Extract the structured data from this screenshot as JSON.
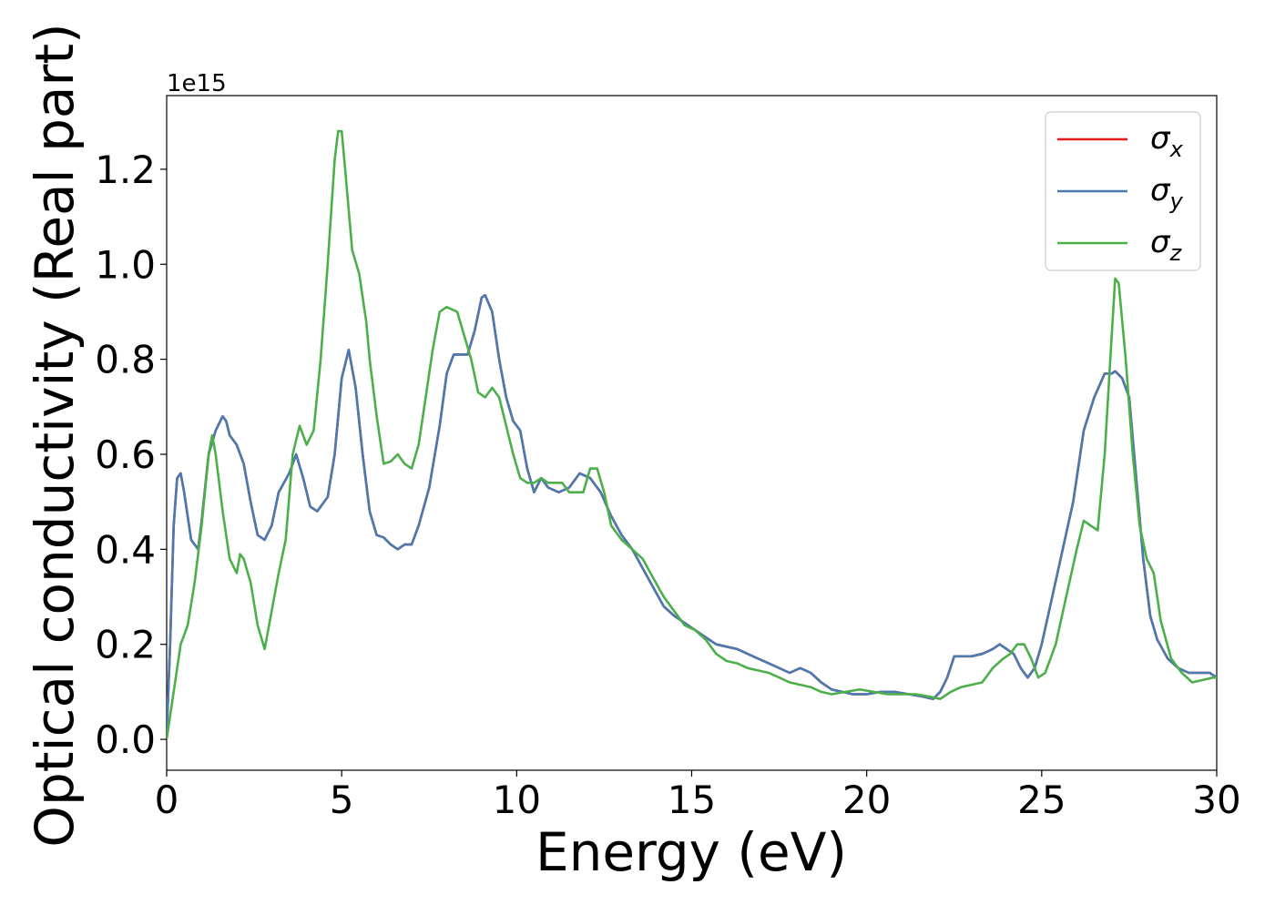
{
  "chart_data": {
    "type": "line",
    "title": "",
    "xlabel": "Energy (eV)",
    "ylabel": "Optical conductivity (Real part)",
    "y_offset_label": "1e15",
    "xlim": [
      0,
      30
    ],
    "ylim": [
      -0.065,
      1.355
    ],
    "xticks": [
      0,
      5,
      10,
      15,
      20,
      25,
      30
    ],
    "xtick_labels": [
      "0",
      "5",
      "10",
      "15",
      "20",
      "25",
      "30"
    ],
    "yticks": [
      0.0,
      0.2,
      0.4,
      0.6,
      0.8,
      1.0,
      1.2
    ],
    "ytick_labels": [
      "0.0",
      "0.2",
      "0.4",
      "0.6",
      "0.8",
      "1.0",
      "1.2"
    ],
    "grid": false,
    "legend_position": "top-right",
    "series": [
      {
        "name": "σx",
        "symbol": "σ",
        "subscript": "x",
        "color": "#e41a1c",
        "x": [
          0,
          0.1,
          0.2,
          0.3,
          0.4,
          0.5,
          0.7,
          0.9,
          1.0,
          1.2,
          1.4,
          1.6,
          1.7,
          1.8,
          2.0,
          2.2,
          2.4,
          2.6,
          2.8,
          3.0,
          3.2,
          3.5,
          3.7,
          3.9,
          4.1,
          4.3,
          4.6,
          4.8,
          5.0,
          5.2,
          5.4,
          5.6,
          5.8,
          6.0,
          6.2,
          6.4,
          6.6,
          6.8,
          7.0,
          7.2,
          7.5,
          7.8,
          8.0,
          8.2,
          8.4,
          8.6,
          8.8,
          9.0,
          9.1,
          9.3,
          9.5,
          9.7,
          9.9,
          10.1,
          10.3,
          10.5,
          10.7,
          10.9,
          11.2,
          11.5,
          11.8,
          12.1,
          12.4,
          12.7,
          13.0,
          13.3,
          13.6,
          13.9,
          14.2,
          14.5,
          14.8,
          15.1,
          15.4,
          15.7,
          16.0,
          16.3,
          16.6,
          16.9,
          17.2,
          17.5,
          17.8,
          18.1,
          18.4,
          18.7,
          19.0,
          19.3,
          19.6,
          20.0,
          20.4,
          20.8,
          21.2,
          21.6,
          21.9,
          22.1,
          22.3,
          22.5,
          22.7,
          23.0,
          23.3,
          23.6,
          23.8,
          24.0,
          24.2,
          24.4,
          24.6,
          24.8,
          25.0,
          25.3,
          25.6,
          25.9,
          26.2,
          26.5,
          26.8,
          27.0,
          27.1,
          27.3,
          27.5,
          27.7,
          27.9,
          28.1,
          28.3,
          28.6,
          28.9,
          29.2,
          29.5,
          29.8,
          30.0
        ],
        "values": [
          0.01,
          0.2,
          0.45,
          0.55,
          0.56,
          0.52,
          0.42,
          0.4,
          0.46,
          0.6,
          0.65,
          0.68,
          0.67,
          0.64,
          0.62,
          0.58,
          0.5,
          0.43,
          0.42,
          0.45,
          0.52,
          0.56,
          0.6,
          0.55,
          0.49,
          0.48,
          0.51,
          0.6,
          0.76,
          0.82,
          0.74,
          0.6,
          0.48,
          0.43,
          0.425,
          0.41,
          0.4,
          0.41,
          0.41,
          0.45,
          0.53,
          0.66,
          0.77,
          0.81,
          0.81,
          0.81,
          0.86,
          0.93,
          0.935,
          0.9,
          0.8,
          0.72,
          0.67,
          0.65,
          0.57,
          0.52,
          0.55,
          0.53,
          0.52,
          0.53,
          0.56,
          0.55,
          0.52,
          0.47,
          0.43,
          0.4,
          0.36,
          0.32,
          0.28,
          0.26,
          0.245,
          0.23,
          0.215,
          0.2,
          0.195,
          0.19,
          0.18,
          0.17,
          0.16,
          0.15,
          0.14,
          0.15,
          0.14,
          0.12,
          0.105,
          0.1,
          0.095,
          0.095,
          0.1,
          0.1,
          0.095,
          0.09,
          0.085,
          0.1,
          0.13,
          0.175,
          0.175,
          0.175,
          0.18,
          0.19,
          0.2,
          0.19,
          0.18,
          0.15,
          0.13,
          0.15,
          0.2,
          0.3,
          0.4,
          0.5,
          0.65,
          0.72,
          0.77,
          0.77,
          0.775,
          0.76,
          0.72,
          0.55,
          0.38,
          0.26,
          0.21,
          0.17,
          0.15,
          0.14,
          0.14,
          0.14,
          0.13
        ]
      },
      {
        "name": "σy",
        "symbol": "σ",
        "subscript": "y",
        "color": "#4a7ab0",
        "x": [
          0,
          0.1,
          0.2,
          0.3,
          0.4,
          0.5,
          0.7,
          0.9,
          1.0,
          1.2,
          1.4,
          1.6,
          1.7,
          1.8,
          2.0,
          2.2,
          2.4,
          2.6,
          2.8,
          3.0,
          3.2,
          3.5,
          3.7,
          3.9,
          4.1,
          4.3,
          4.6,
          4.8,
          5.0,
          5.2,
          5.4,
          5.6,
          5.8,
          6.0,
          6.2,
          6.4,
          6.6,
          6.8,
          7.0,
          7.2,
          7.5,
          7.8,
          8.0,
          8.2,
          8.4,
          8.6,
          8.8,
          9.0,
          9.1,
          9.3,
          9.5,
          9.7,
          9.9,
          10.1,
          10.3,
          10.5,
          10.7,
          10.9,
          11.2,
          11.5,
          11.8,
          12.1,
          12.4,
          12.7,
          13.0,
          13.3,
          13.6,
          13.9,
          14.2,
          14.5,
          14.8,
          15.1,
          15.4,
          15.7,
          16.0,
          16.3,
          16.6,
          16.9,
          17.2,
          17.5,
          17.8,
          18.1,
          18.4,
          18.7,
          19.0,
          19.3,
          19.6,
          20.0,
          20.4,
          20.8,
          21.2,
          21.6,
          21.9,
          22.1,
          22.3,
          22.5,
          22.7,
          23.0,
          23.3,
          23.6,
          23.8,
          24.0,
          24.2,
          24.4,
          24.6,
          24.8,
          25.0,
          25.3,
          25.6,
          25.9,
          26.2,
          26.5,
          26.8,
          27.0,
          27.1,
          27.3,
          27.5,
          27.7,
          27.9,
          28.1,
          28.3,
          28.6,
          28.9,
          29.2,
          29.5,
          29.8,
          30.0
        ],
        "values": [
          0.01,
          0.2,
          0.45,
          0.55,
          0.56,
          0.52,
          0.42,
          0.4,
          0.46,
          0.6,
          0.65,
          0.68,
          0.67,
          0.64,
          0.62,
          0.58,
          0.5,
          0.43,
          0.42,
          0.45,
          0.52,
          0.56,
          0.6,
          0.55,
          0.49,
          0.48,
          0.51,
          0.6,
          0.76,
          0.82,
          0.74,
          0.6,
          0.48,
          0.43,
          0.425,
          0.41,
          0.4,
          0.41,
          0.41,
          0.45,
          0.53,
          0.66,
          0.77,
          0.81,
          0.81,
          0.81,
          0.86,
          0.93,
          0.935,
          0.9,
          0.8,
          0.72,
          0.67,
          0.65,
          0.57,
          0.52,
          0.55,
          0.53,
          0.52,
          0.53,
          0.56,
          0.55,
          0.52,
          0.47,
          0.43,
          0.4,
          0.36,
          0.32,
          0.28,
          0.26,
          0.245,
          0.23,
          0.215,
          0.2,
          0.195,
          0.19,
          0.18,
          0.17,
          0.16,
          0.15,
          0.14,
          0.15,
          0.14,
          0.12,
          0.105,
          0.1,
          0.095,
          0.095,
          0.1,
          0.1,
          0.095,
          0.09,
          0.085,
          0.1,
          0.13,
          0.175,
          0.175,
          0.175,
          0.18,
          0.19,
          0.2,
          0.19,
          0.18,
          0.15,
          0.13,
          0.15,
          0.2,
          0.3,
          0.4,
          0.5,
          0.65,
          0.72,
          0.77,
          0.77,
          0.775,
          0.76,
          0.72,
          0.55,
          0.38,
          0.26,
          0.21,
          0.17,
          0.15,
          0.14,
          0.14,
          0.14,
          0.13
        ]
      },
      {
        "name": "σz",
        "symbol": "σ",
        "subscript": "z",
        "color": "#4daf4a",
        "x": [
          0,
          0.2,
          0.4,
          0.6,
          0.8,
          1.0,
          1.2,
          1.3,
          1.4,
          1.6,
          1.8,
          2.0,
          2.1,
          2.2,
          2.4,
          2.6,
          2.8,
          3.0,
          3.2,
          3.4,
          3.6,
          3.8,
          4.0,
          4.2,
          4.4,
          4.6,
          4.8,
          4.9,
          5.0,
          5.1,
          5.3,
          5.5,
          5.7,
          5.8,
          6.0,
          6.2,
          6.4,
          6.6,
          6.8,
          7.0,
          7.2,
          7.4,
          7.6,
          7.8,
          8.0,
          8.3,
          8.5,
          8.7,
          8.9,
          9.1,
          9.3,
          9.5,
          9.7,
          9.9,
          10.1,
          10.3,
          10.5,
          10.7,
          10.9,
          11.1,
          11.3,
          11.5,
          11.7,
          11.9,
          12.1,
          12.3,
          12.5,
          12.7,
          13.0,
          13.3,
          13.6,
          13.9,
          14.2,
          14.5,
          14.8,
          15.1,
          15.4,
          15.7,
          16.0,
          16.3,
          16.6,
          16.9,
          17.2,
          17.5,
          17.8,
          18.1,
          18.4,
          18.7,
          19.0,
          19.4,
          19.8,
          20.2,
          20.6,
          21.0,
          21.4,
          21.8,
          22.1,
          22.4,
          22.7,
          23.0,
          23.3,
          23.6,
          23.9,
          24.1,
          24.3,
          24.5,
          24.7,
          24.9,
          25.1,
          25.4,
          25.7,
          26.0,
          26.2,
          26.4,
          26.6,
          26.8,
          27.0,
          27.1,
          27.2,
          27.4,
          27.6,
          27.8,
          28.0,
          28.2,
          28.4,
          28.7,
          29.0,
          29.3,
          29.6,
          29.9,
          30.0
        ],
        "values": [
          0.0,
          0.1,
          0.2,
          0.24,
          0.33,
          0.45,
          0.6,
          0.64,
          0.6,
          0.48,
          0.38,
          0.35,
          0.39,
          0.38,
          0.33,
          0.24,
          0.19,
          0.27,
          0.35,
          0.42,
          0.6,
          0.66,
          0.62,
          0.65,
          0.8,
          1.0,
          1.22,
          1.28,
          1.28,
          1.2,
          1.03,
          0.98,
          0.88,
          0.8,
          0.68,
          0.58,
          0.585,
          0.6,
          0.58,
          0.57,
          0.62,
          0.72,
          0.82,
          0.9,
          0.91,
          0.9,
          0.85,
          0.8,
          0.73,
          0.72,
          0.74,
          0.72,
          0.66,
          0.6,
          0.55,
          0.54,
          0.54,
          0.55,
          0.54,
          0.54,
          0.54,
          0.52,
          0.52,
          0.52,
          0.57,
          0.57,
          0.52,
          0.45,
          0.42,
          0.4,
          0.38,
          0.34,
          0.3,
          0.27,
          0.24,
          0.23,
          0.21,
          0.18,
          0.165,
          0.16,
          0.15,
          0.145,
          0.14,
          0.13,
          0.12,
          0.115,
          0.11,
          0.1,
          0.095,
          0.1,
          0.105,
          0.1,
          0.095,
          0.095,
          0.095,
          0.09,
          0.085,
          0.1,
          0.11,
          0.115,
          0.12,
          0.15,
          0.17,
          0.18,
          0.2,
          0.2,
          0.17,
          0.13,
          0.14,
          0.2,
          0.3,
          0.4,
          0.46,
          0.45,
          0.44,
          0.6,
          0.85,
          0.97,
          0.96,
          0.8,
          0.6,
          0.45,
          0.38,
          0.35,
          0.25,
          0.17,
          0.14,
          0.12,
          0.125,
          0.13,
          0.13
        ]
      }
    ]
  }
}
